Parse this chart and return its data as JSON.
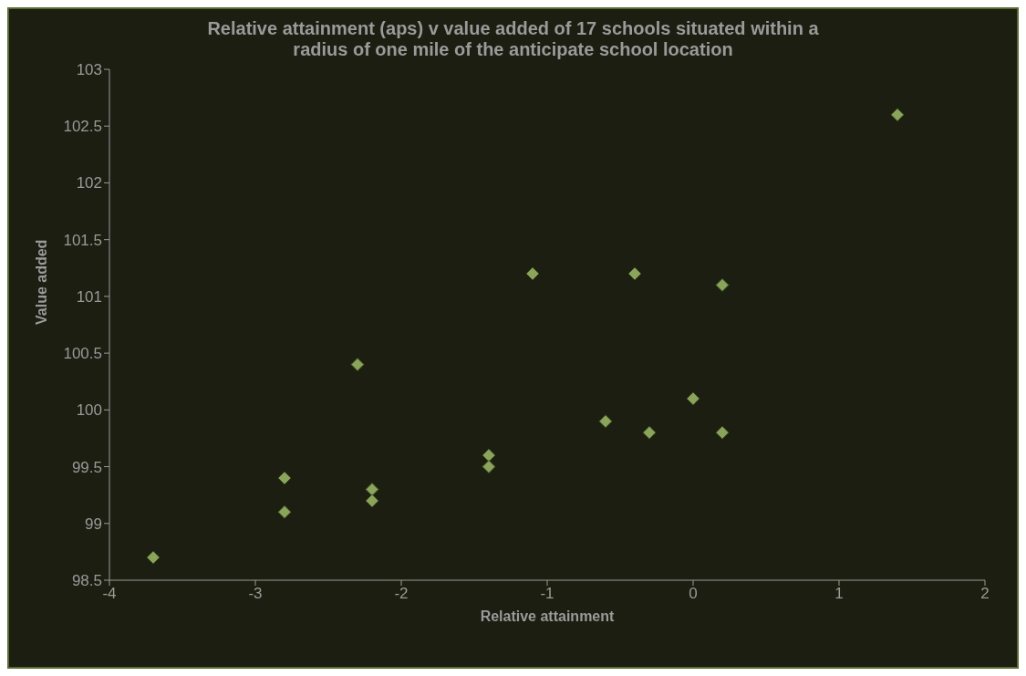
{
  "chart_data": {
    "type": "scatter",
    "title": "Relative attainment (aps) v value added of 17 schools situated within a radius of one mile of the anticipate school location",
    "xlabel": "Relative attainment",
    "ylabel": "Value added",
    "x": [
      -3.7,
      -2.8,
      -2.8,
      -2.3,
      -2.2,
      -2.2,
      -1.4,
      -1.4,
      -1.1,
      -0.6,
      -0.4,
      -0.3,
      0,
      0.2,
      0.2,
      1.4
    ],
    "values": [
      98.7,
      99.4,
      99.1,
      100.4,
      99.3,
      99.2,
      99.6,
      99.5,
      101.2,
      99.9,
      101.2,
      99.8,
      100.1,
      101.1,
      99.8,
      102.6
    ],
    "color": "#8aa55a",
    "marker": "diamond",
    "xlim": [
      -4,
      2
    ],
    "xticks": [
      -4,
      -3,
      -2,
      -1,
      0,
      1,
      2
    ],
    "ylim": [
      98.5,
      103
    ],
    "yticks": [
      98.5,
      99,
      99.5,
      100,
      100.5,
      101,
      101.5,
      102,
      102.5,
      103
    ],
    "grid": false,
    "legend": false
  }
}
